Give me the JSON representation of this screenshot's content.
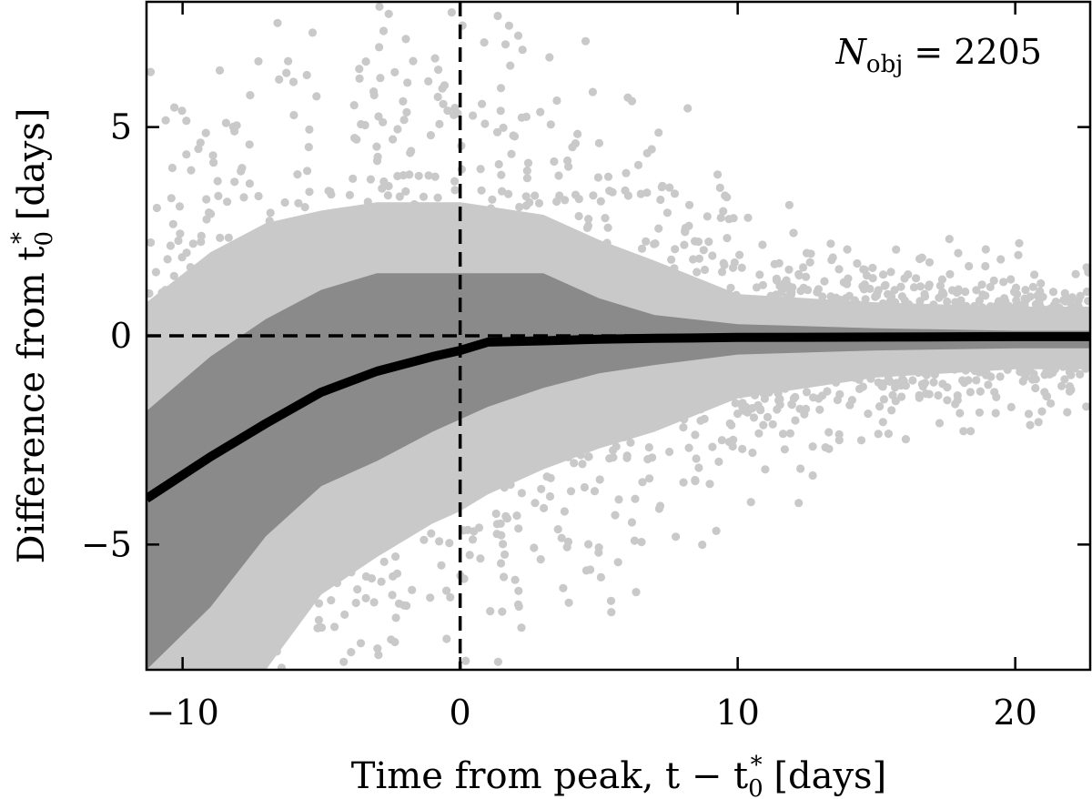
{
  "chart_data": {
    "type": "scatter",
    "xlabel_text": "Time from peak, t − t",
    "xlabel_sub": "0",
    "xlabel_sup": "*",
    "xlabel_units": " [days]",
    "ylabel_text": "Difference from t",
    "ylabel_sub": "0",
    "ylabel_sup": "*",
    "ylabel_units": " [days]",
    "annotation": {
      "symbol": "N",
      "sub": "obj",
      "rest": " = 2205"
    },
    "xlim": [
      -11.3,
      22.7
    ],
    "ylim": [
      -8.0,
      8.0
    ],
    "x_ticks": [
      -10,
      0,
      10,
      20
    ],
    "x_tick_labels": [
      "−10",
      "0",
      "10",
      "20"
    ],
    "y_ticks": [
      -5,
      0,
      5
    ],
    "y_tick_labels": [
      "−5",
      "0",
      "5"
    ],
    "reference_lines": {
      "x": 0,
      "y": 0,
      "style": "dashed"
    },
    "median_line": {
      "x": [
        -11.3,
        -9,
        -7,
        -5,
        -3,
        -1,
        0,
        1,
        3,
        5,
        7,
        10,
        15,
        20,
        22.7
      ],
      "y": [
        -3.9,
        -2.9,
        -2.1,
        -1.35,
        -0.85,
        -0.5,
        -0.35,
        -0.15,
        -0.12,
        -0.08,
        -0.06,
        -0.04,
        -0.03,
        -0.02,
        -0.02
      ]
    },
    "outer_band": {
      "x": [
        -11.3,
        -9,
        -7,
        -5,
        -3,
        -1,
        0,
        1,
        3,
        5,
        7,
        10,
        15,
        20,
        22.7
      ],
      "upper": [
        0.8,
        2.0,
        2.7,
        3.0,
        3.2,
        3.2,
        3.2,
        3.1,
        2.9,
        2.3,
        1.8,
        1.0,
        0.8,
        0.7,
        0.7
      ],
      "lower": [
        -8.0,
        -8.0,
        -8.0,
        -6.2,
        -5.3,
        -4.5,
        -4.2,
        -3.8,
        -3.2,
        -2.7,
        -2.3,
        -1.5,
        -1.0,
        -0.8,
        -0.8
      ]
    },
    "inner_band": {
      "x": [
        -11.3,
        -9,
        -7,
        -5,
        -3,
        -1,
        0,
        1,
        3,
        5,
        7,
        10,
        15,
        20,
        22.7
      ],
      "upper": [
        -1.8,
        -0.5,
        0.4,
        1.1,
        1.5,
        1.5,
        1.5,
        1.5,
        1.5,
        0.9,
        0.5,
        0.28,
        0.18,
        0.12,
        0.12
      ],
      "lower": [
        -8.0,
        -6.5,
        -4.8,
        -3.6,
        -3.0,
        -2.3,
        -2.0,
        -1.7,
        -1.25,
        -0.9,
        -0.7,
        -0.45,
        -0.35,
        -0.3,
        -0.3
      ]
    },
    "colors": {
      "points": "#c9c9c9",
      "outer_band": "#c9c9c9",
      "inner_band": "#8a8a8a",
      "median": "#000000",
      "reference": "#000000"
    },
    "grid": false
  }
}
